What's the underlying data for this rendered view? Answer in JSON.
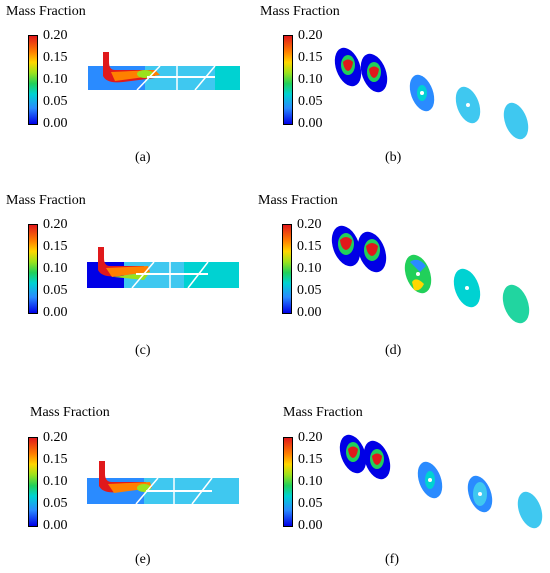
{
  "legend": {
    "title": "Mass Fraction",
    "ticks": [
      "0.20",
      "0.15",
      "0.10",
      "0.05",
      "0.00"
    ]
  },
  "captions": [
    "(a)",
    "(b)",
    "(c)",
    "(d)",
    "(e)",
    "(f)"
  ],
  "colors": {
    "red": "#e0191b",
    "orange": "#ff7f00",
    "yellow": "#ffd700",
    "green": "#21d05a",
    "cyan": "#00d2d2",
    "blue": "#0000e6",
    "lightblue": "#3fc8f0"
  }
}
